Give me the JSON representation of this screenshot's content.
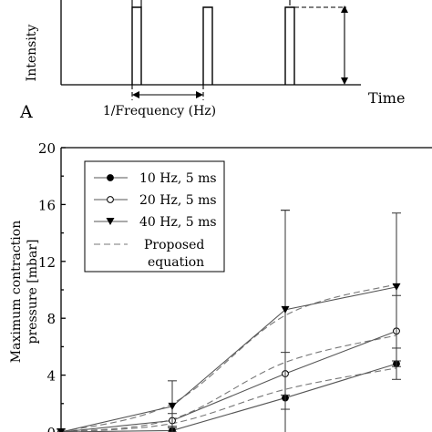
{
  "panel_a": {
    "panel_label": "A",
    "y_label": "Intensity",
    "x_label": "Time",
    "period_label": "1/Frequency (Hz)"
  },
  "chart_data": {
    "type": "line",
    "ylabel_line1": "Maximum contraction",
    "ylabel_line2": "pressure [mbar]",
    "ylim": [
      0,
      20
    ],
    "yticks": [
      0,
      4,
      8,
      12,
      16,
      20
    ],
    "x": [
      1,
      2,
      3,
      4
    ],
    "legend_position": "top-left",
    "grid": false,
    "series": [
      {
        "name": "10 Hz, 5 ms",
        "marker": "filled-circle",
        "values": [
          0.0,
          0.1,
          2.4,
          4.8
        ],
        "errors": [
          0.2,
          0.3,
          13.2,
          1.1
        ]
      },
      {
        "name": "20 Hz, 5 ms",
        "marker": "open-circle",
        "values": [
          0.0,
          0.8,
          4.1,
          7.1
        ],
        "errors": [
          0.2,
          0.5,
          1.5,
          2.5
        ]
      },
      {
        "name": "40 Hz, 5 ms",
        "marker": "filled-triangle-down",
        "values": [
          0.0,
          1.8,
          8.6,
          10.2
        ],
        "errors": [
          0.2,
          1.8,
          7.0,
          5.2
        ]
      }
    ],
    "proposed_equation": {
      "name": "Proposed equation",
      "name_line1": "Proposed",
      "name_line2": "equation",
      "curves": [
        [
          0.0,
          0.6,
          3.0,
          4.5
        ],
        [
          0.0,
          0.9,
          4.9,
          6.8
        ],
        [
          0.0,
          2.0,
          8.2,
          10.4
        ]
      ]
    }
  }
}
